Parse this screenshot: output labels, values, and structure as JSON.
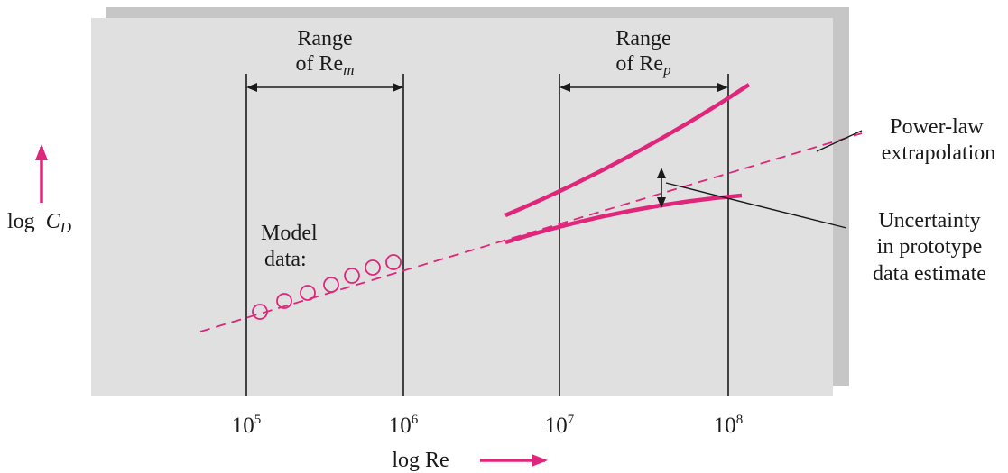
{
  "colors": {
    "accent": "#e0267a",
    "panel": "#e0e0e0",
    "shadow": "#c6c6c6",
    "ink": "#1a1a1a"
  },
  "ranges": {
    "model": {
      "line1": "Range",
      "line2_prefix": "of Re",
      "line2_sub": "m"
    },
    "prototype": {
      "line1": "Range",
      "line2_prefix": "of Re",
      "line2_sub": "p"
    }
  },
  "axes": {
    "y_label_prefix": "log ",
    "y_label_var": "C",
    "y_label_sub": "D",
    "x_label": "log Re"
  },
  "ticks": [
    {
      "base": "10",
      "exp": "5"
    },
    {
      "base": "10",
      "exp": "6"
    },
    {
      "base": "10",
      "exp": "7"
    },
    {
      "base": "10",
      "exp": "8"
    }
  ],
  "annotations": {
    "model_data": {
      "line1": "Model",
      "line2": "data:"
    },
    "power_law": {
      "line1": "Power-law",
      "line2": "extrapolation"
    },
    "uncertainty": {
      "line1": "Uncertainty",
      "line2": "in prototype",
      "line3": "data estimate"
    }
  }
}
